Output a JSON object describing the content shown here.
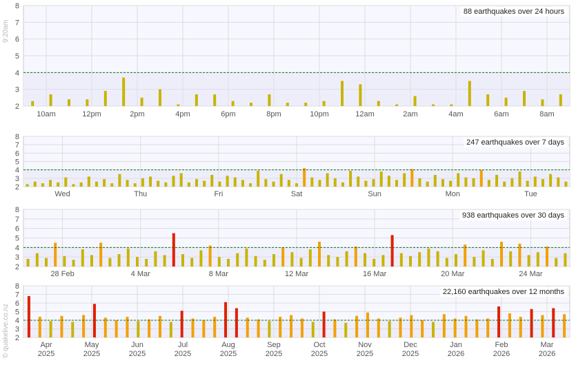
{
  "timestamp": "9:20am",
  "credit": "© quakelive.co.nz",
  "colors": {
    "bar_low": "#c8b400",
    "bar_mid": "#f2a000",
    "bar_high": "#e02000",
    "plot_bg_light": "#f7f7ff",
    "plot_bg_band": "#eeeefb",
    "grid": "#dddddd",
    "threshold": "#117711",
    "axis_text": "#555555"
  },
  "chart_data": [
    {
      "type": "bar",
      "title": "88 earthquakes over 24 hours",
      "y_ticks": [
        "8",
        "7",
        "6",
        "5",
        "4",
        "3",
        "2"
      ],
      "ylim": [
        2,
        8
      ],
      "threshold": 4,
      "x_ticks": [
        "10am",
        "12pm",
        "2pm",
        "4pm",
        "6pm",
        "8pm",
        "10pm",
        "12am",
        "2am",
        "4am",
        "6am",
        "8am"
      ],
      "values": [
        2.3,
        2.7,
        2.4,
        2.4,
        2.9,
        3.7,
        2.5,
        3.0,
        2.1,
        2.7,
        2.7,
        2.3,
        2.2,
        2.7,
        2.2,
        2.2,
        2.3,
        3.5,
        3.3,
        2.3,
        2.1,
        2.6,
        2.1,
        2.1,
        3.5,
        2.7,
        2.5,
        2.9,
        2.4,
        2.7
      ]
    },
    {
      "type": "bar",
      "title": "247 earthquakes over 7 days",
      "y_ticks": [
        "8",
        "7",
        "6",
        "5",
        "4",
        "3",
        "2"
      ],
      "ylim": [
        2,
        8
      ],
      "threshold": 4,
      "x_ticks": [
        "Wed",
        "Thu",
        "Fri",
        "Sat",
        "Sun",
        "Mon",
        "Tue"
      ],
      "values": [
        2.3,
        2.6,
        2.4,
        2.8,
        2.5,
        3.1,
        2.3,
        2.5,
        3.2,
        2.6,
        2.9,
        2.4,
        3.5,
        2.8,
        2.4,
        3.0,
        3.2,
        2.7,
        2.5,
        3.3,
        3.6,
        2.5,
        2.9,
        2.7,
        3.4,
        2.6,
        3.3,
        3.1,
        2.8,
        2.4,
        3.9,
        2.9,
        2.6,
        3.5,
        2.8,
        2.4,
        4.2,
        3.1,
        2.8,
        3.6,
        3.0,
        2.5,
        3.9,
        3.2,
        2.7,
        2.9,
        3.8,
        3.3,
        2.8,
        3.6,
        4.1,
        3.0,
        2.6,
        3.4,
        2.9,
        2.7,
        3.6,
        3.1,
        3.0,
        4.0,
        2.8,
        3.4,
        2.6,
        3.0,
        3.8,
        2.7,
        3.2,
        2.9,
        3.5,
        3.1,
        2.6
      ]
    },
    {
      "type": "bar",
      "title": "938 earthquakes over 30 days",
      "y_ticks": [
        "8",
        "7",
        "6",
        "5",
        "4",
        "3",
        "2"
      ],
      "ylim": [
        2,
        8
      ],
      "threshold": 4,
      "x_ticks": [
        "28 Feb",
        "4 Mar",
        "8 Mar",
        "12 Mar",
        "16 Mar",
        "20 Mar",
        "24 Mar"
      ],
      "values": [
        2.8,
        3.4,
        2.9,
        4.5,
        3.1,
        2.7,
        3.8,
        3.2,
        4.5,
        2.9,
        3.3,
        3.9,
        3.0,
        2.8,
        3.6,
        3.2,
        5.5,
        3.3,
        2.9,
        3.7,
        4.2,
        3.0,
        2.8,
        3.4,
        3.9,
        3.1,
        2.7,
        3.3,
        4.0,
        3.5,
        2.9,
        3.8,
        4.6,
        3.2,
        3.0,
        3.6,
        4.1,
        3.4,
        2.8,
        3.2,
        5.3,
        3.4,
        3.1,
        3.5,
        3.9,
        3.6,
        2.9,
        3.3,
        4.3,
        3.0,
        3.7,
        2.8,
        4.6,
        3.6,
        4.4,
        3.2,
        3.5,
        4.1,
        2.9,
        3.4
      ]
    },
    {
      "type": "bar",
      "title": "22,160 earthquakes over 12 months",
      "y_ticks": [
        "8",
        "7",
        "6",
        "5",
        "4",
        "3",
        "2"
      ],
      "ylim": [
        2,
        8
      ],
      "threshold": 4,
      "x_ticks": [
        "Apr\n2025",
        "May\n2025",
        "Jun\n2025",
        "Jul\n2025",
        "Aug\n2025",
        "Sep\n2025",
        "Oct\n2025",
        "Nov\n2025",
        "Dec\n2025",
        "Jan\n2026",
        "Feb\n2026",
        "Mar\n2026"
      ],
      "values": [
        6.8,
        4.4,
        3.9,
        4.5,
        3.8,
        4.6,
        5.9,
        4.3,
        4.0,
        4.4,
        3.9,
        4.1,
        4.5,
        3.8,
        5.1,
        4.2,
        4.0,
        4.4,
        6.1,
        5.4,
        4.3,
        4.1,
        3.9,
        4.4,
        4.6,
        4.2,
        3.8,
        5.0,
        4.1,
        3.7,
        4.5,
        4.9,
        4.2,
        3.9,
        4.3,
        4.6,
        4.0,
        3.8,
        4.7,
        4.2,
        4.5,
        4.1,
        4.2,
        5.6,
        4.8,
        4.4,
        5.3,
        4.6,
        5.4,
        4.7
      ]
    }
  ]
}
